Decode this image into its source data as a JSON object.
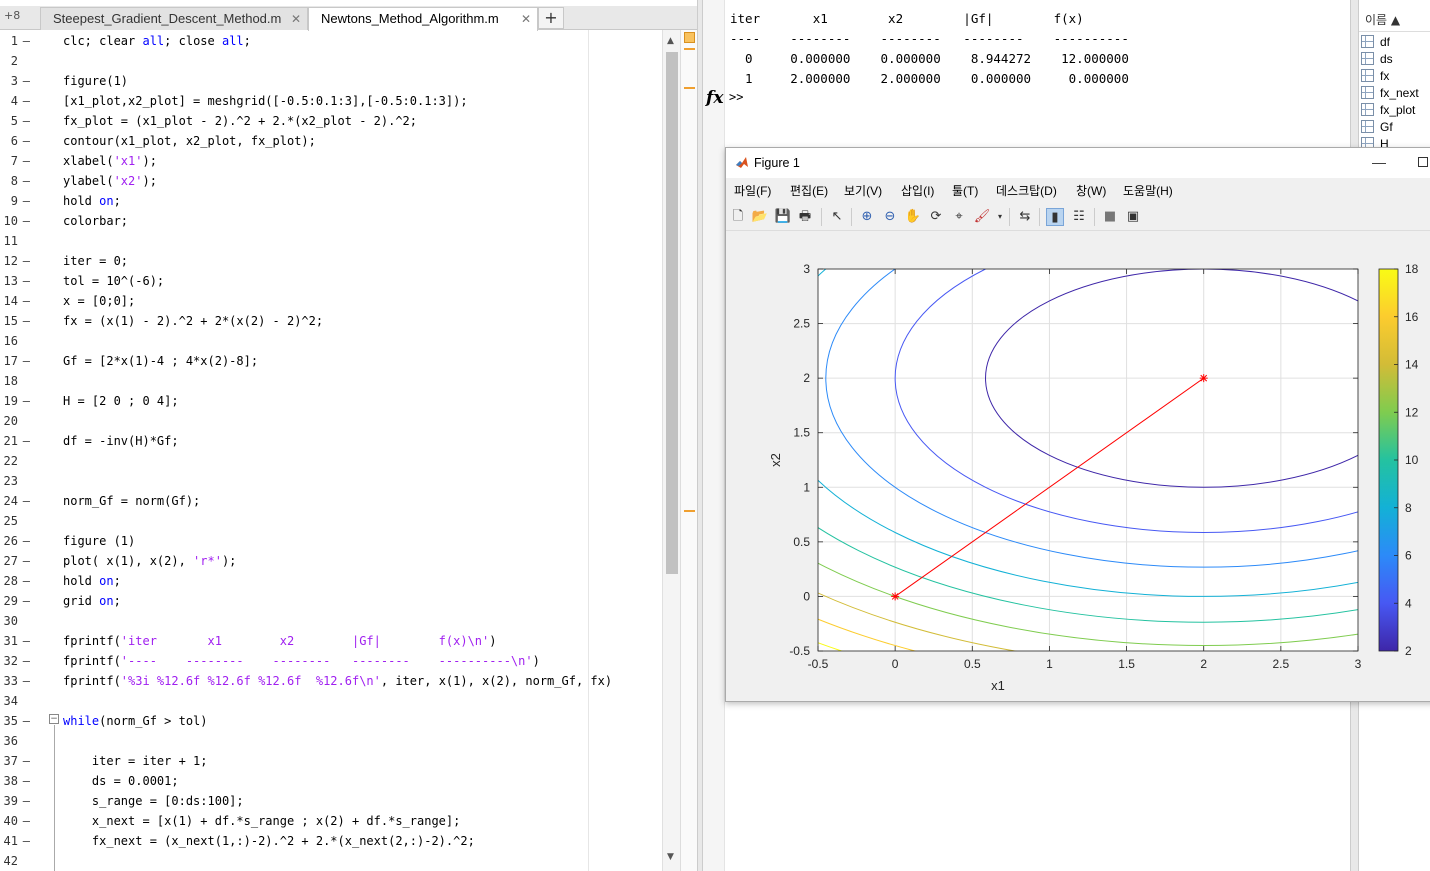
{
  "editor": {
    "tab_count": "+8",
    "tabs": [
      {
        "label": "Steepest_Gradient_Descent_Method.m",
        "active": false
      },
      {
        "label": "Newtons_Method_Algorithm.m",
        "active": true
      }
    ],
    "add_tab_label": "+",
    "lines": [
      {
        "n": "1",
        "dash": true,
        "text": "clc; clear all; close all;"
      },
      {
        "n": "2",
        "dash": false,
        "text": ""
      },
      {
        "n": "3",
        "dash": true,
        "text": "figure(1)"
      },
      {
        "n": "4",
        "dash": true,
        "text": "[x1_plot,x2_plot] = meshgrid([-0.5:0.1:3],[-0.5:0.1:3]);"
      },
      {
        "n": "5",
        "dash": true,
        "text": "fx_plot = (x1_plot - 2).^2 + 2.*(x2_plot - 2).^2;"
      },
      {
        "n": "6",
        "dash": true,
        "text": "contour(x1_plot, x2_plot, fx_plot);"
      },
      {
        "n": "7",
        "dash": true,
        "text": "xlabel('x1');"
      },
      {
        "n": "8",
        "dash": true,
        "text": "ylabel('x2');"
      },
      {
        "n": "9",
        "dash": true,
        "text": "hold on;"
      },
      {
        "n": "10",
        "dash": true,
        "text": "colorbar;"
      },
      {
        "n": "11",
        "dash": false,
        "text": ""
      },
      {
        "n": "12",
        "dash": true,
        "text": "iter = 0;"
      },
      {
        "n": "13",
        "dash": true,
        "text": "tol = 10^(-6);"
      },
      {
        "n": "14",
        "dash": true,
        "text": "x = [0;0];"
      },
      {
        "n": "15",
        "dash": true,
        "text": "fx = (x(1) - 2).^2 + 2*(x(2) - 2)^2;"
      },
      {
        "n": "16",
        "dash": false,
        "text": ""
      },
      {
        "n": "17",
        "dash": true,
        "text": "Gf = [2*x(1)-4 ; 4*x(2)-8];"
      },
      {
        "n": "18",
        "dash": false,
        "text": ""
      },
      {
        "n": "19",
        "dash": true,
        "text": "H = [2 0 ; 0 4];"
      },
      {
        "n": "20",
        "dash": false,
        "text": ""
      },
      {
        "n": "21",
        "dash": true,
        "text": "df = -inv(H)*Gf;"
      },
      {
        "n": "22",
        "dash": false,
        "text": ""
      },
      {
        "n": "23",
        "dash": false,
        "text": ""
      },
      {
        "n": "24",
        "dash": true,
        "text": "norm_Gf = norm(Gf);"
      },
      {
        "n": "25",
        "dash": false,
        "text": ""
      },
      {
        "n": "26",
        "dash": true,
        "text": "figure (1)"
      },
      {
        "n": "27",
        "dash": true,
        "text": "plot( x(1), x(2), 'r*');"
      },
      {
        "n": "28",
        "dash": true,
        "text": "hold on;"
      },
      {
        "n": "29",
        "dash": true,
        "text": "grid on;"
      },
      {
        "n": "30",
        "dash": false,
        "text": ""
      },
      {
        "n": "31",
        "dash": true,
        "text": "fprintf('iter       x1        x2        |Gf|        f(x)\\n')"
      },
      {
        "n": "32",
        "dash": true,
        "text": "fprintf('----    --------    --------   --------    ----------\\n')"
      },
      {
        "n": "33",
        "dash": true,
        "text": "fprintf('%3i %12.6f %12.6f %12.6f  %12.6f\\n', iter, x(1), x(2), norm_Gf, fx)"
      },
      {
        "n": "34",
        "dash": false,
        "text": ""
      },
      {
        "n": "35",
        "dash": true,
        "text": "while(norm_Gf > tol)"
      },
      {
        "n": "36",
        "dash": false,
        "text": ""
      },
      {
        "n": "37",
        "dash": true,
        "text": "    iter = iter + 1;"
      },
      {
        "n": "38",
        "dash": true,
        "text": "    ds = 0.0001;"
      },
      {
        "n": "39",
        "dash": true,
        "text": "    s_range = [0:ds:100];"
      },
      {
        "n": "40",
        "dash": true,
        "text": "    x_next = [x(1) + df.*s_range ; x(2) + df.*s_range];"
      },
      {
        "n": "41",
        "dash": true,
        "text": "    fx_next = (x_next(1,:)-2).^2 + 2.*(x_next(2,:)-2).^2;"
      },
      {
        "n": "42",
        "dash": false,
        "text": ""
      }
    ]
  },
  "command_window": {
    "lines": [
      "iter       x1        x2        |Gf|        f(x)",
      "----    --------    --------   --------    ----------",
      "  0     0.000000    0.000000    8.944272    12.000000",
      "  1     2.000000    2.000000    0.000000     0.000000"
    ],
    "fx_label": "fx",
    "prompt": ">>"
  },
  "workspace": {
    "header": "이름 ▲",
    "vars": [
      "df",
      "ds",
      "fx",
      "fx_next",
      "fx_plot",
      "Gf",
      "H"
    ]
  },
  "figure": {
    "title": "Figure 1",
    "menu": [
      "파일(F)",
      "편집(E)",
      "보기(V)",
      "삽입(I)",
      "툴(T)",
      "데스크탑(D)",
      "창(W)",
      "도움말(H)"
    ]
  },
  "chart_data": {
    "type": "contour",
    "function": "(x1 - 2)^2 + 2*(x2 - 2)^2",
    "xlabel": "x1",
    "ylabel": "x2",
    "xlim": [
      -0.5,
      3
    ],
    "ylim": [
      -0.5,
      3
    ],
    "xticks": [
      "-0.5",
      "0",
      "0.5",
      "1",
      "1.5",
      "2",
      "2.5",
      "3"
    ],
    "yticks": [
      "-0.5",
      "0",
      "0.5",
      "1",
      "1.5",
      "2",
      "2.5",
      "3"
    ],
    "contour_levels": [
      2,
      4,
      6,
      8,
      10,
      12,
      14,
      16,
      18
    ],
    "colorbar_range": [
      2,
      18
    ],
    "colorbar_ticks": [
      "2",
      "4",
      "6",
      "8",
      "10",
      "12",
      "14",
      "16",
      "18"
    ],
    "grid": true,
    "path": {
      "x": [
        0,
        2
      ],
      "y": [
        0,
        2
      ],
      "color": "#ff0000",
      "marker": "*"
    }
  }
}
